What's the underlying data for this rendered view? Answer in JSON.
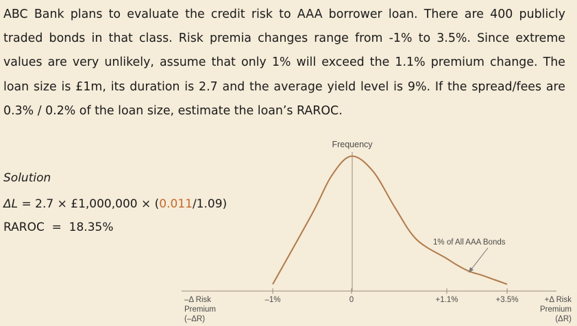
{
  "problem": {
    "text": "ABC Bank plans to evaluate the credit risk to AAA borrower loan. There are 400 publicly traded bonds in that class. Risk premia changes range from -1% to 3.5%. Since extreme values are very unlikely, assume that only 1% will exceed the 1.1% premium change. The loan size is £1m, its duration is 2.7 and the average yield level is 9%. If the spread/fees are 0.3% / 0.2% of the loan size, estimate the loan’s RAROC."
  },
  "solution": {
    "heading": "Solution",
    "eq1": {
      "lhs_symbol": "ΔL",
      "lhs_rest": " = 2.7 × £1,000,000 × (",
      "highlight": "0.011",
      "tail": "/1.09)"
    },
    "eq2": "RAROC  =  18.35%"
  },
  "chart": {
    "y_axis_label": "Frequency",
    "annotation": "1% of All AAA Bonds",
    "left_axis_label": [
      "–Δ Risk",
      "Premium",
      "(–ΔR)"
    ],
    "right_axis_label": [
      "+Δ Risk",
      "Premium",
      "(ΔR)"
    ],
    "tick_labels": [
      "–1%",
      "0",
      "+1.1%",
      "+3.5%"
    ],
    "colors": {
      "curve": "#b07a4a",
      "axis": "#9a8a78",
      "arrow": "#777777",
      "highlight": "#c46a2a"
    }
  },
  "chart_data": {
    "type": "line",
    "title": "",
    "xlabel": "",
    "ylabel": "Frequency",
    "x": [
      -1.0,
      -0.5,
      -0.25,
      0.0,
      0.25,
      0.5,
      0.75,
      1.1,
      1.5,
      2.0,
      2.5,
      3.0,
      3.5
    ],
    "series": [
      {
        "values": [
          0.0,
          0.55,
          0.85,
          1.0,
          0.88,
          0.6,
          0.35,
          0.2,
          0.15,
          0.1,
          0.07,
          0.035,
          0.0
        ]
      }
    ],
    "xticks": [
      "–1%",
      "0",
      "+1.1%",
      "+3.5%"
    ],
    "xlim": [
      -1.0,
      3.5
    ],
    "grid": false,
    "annotations": [
      "1% of All AAA Bonds"
    ]
  }
}
